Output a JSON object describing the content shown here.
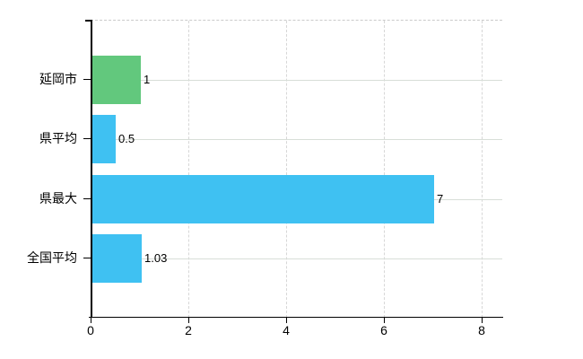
{
  "colors": {
    "background": "#ffffff",
    "axis": "#000000",
    "grid_solid": "#d8ded8",
    "grid_dashed": "#d7d7d7",
    "text": "#000000",
    "green_bar": "#62c87d",
    "blue_bar": "#3fc1f2"
  },
  "chart_data": {
    "type": "bar",
    "orientation": "horizontal",
    "title": "",
    "xlabel": "",
    "ylabel": "",
    "categories": [
      "延岡市",
      "県平均",
      "県最大",
      "全国平均"
    ],
    "values": [
      1,
      0.5,
      7,
      1.03
    ],
    "value_labels": [
      "1",
      "0.5",
      "7",
      "1.03"
    ],
    "bar_colors": [
      "#62c87d",
      "#3fc1f2",
      "#3fc1f2",
      "#3fc1f2"
    ],
    "x_ticks": [
      0,
      2,
      4,
      6,
      8
    ],
    "x_tick_labels": [
      "0",
      "2",
      "4",
      "6",
      "8"
    ],
    "xlim": [
      0,
      8.42
    ],
    "grid": true,
    "legend_position": "none"
  }
}
